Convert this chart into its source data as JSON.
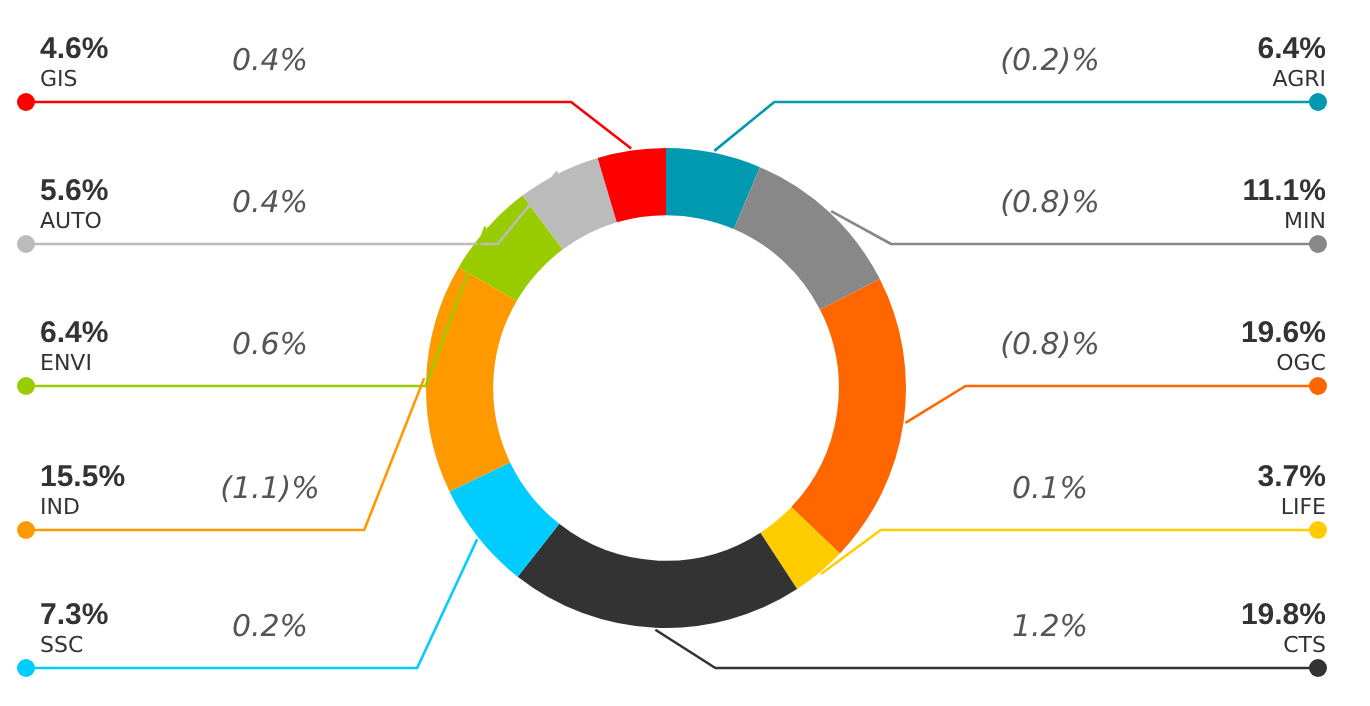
{
  "chart_data": {
    "type": "donut",
    "categories": [
      "AGRI",
      "MIN",
      "OGC",
      "LIFE",
      "CTS",
      "SSC",
      "IND",
      "ENVI",
      "AUTO",
      "GIS"
    ],
    "values": [
      6.4,
      11.1,
      19.6,
      3.7,
      19.8,
      7.3,
      15.5,
      6.4,
      5.6,
      4.6
    ],
    "value_labels": [
      "6.4%",
      "11.1%",
      "19.6%",
      "3.7%",
      "19.8%",
      "7.3%",
      "15.5%",
      "6.4%",
      "5.6%",
      "4.6%"
    ],
    "colors": [
      "#0099b0",
      "#888888",
      "#ff6600",
      "#ffcc00",
      "#333333",
      "#00ccff",
      "#ff9900",
      "#99cc00",
      "#bbbbbb",
      "#ff0000"
    ],
    "annotations": [
      "(0.2)%",
      "(0.8)%",
      "(0.8)%",
      "0.1%",
      "1.2%",
      "0.2%",
      "(1.1)%",
      "0.6%",
      "0.4%",
      "0.4%"
    ],
    "legend": false
  }
}
